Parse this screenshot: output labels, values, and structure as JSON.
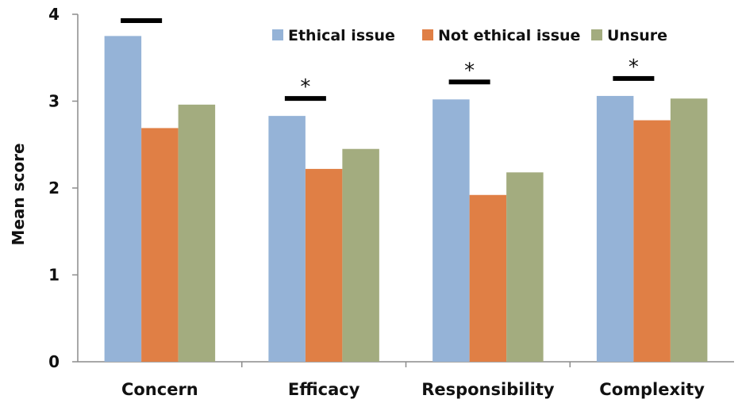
{
  "chart_data": {
    "type": "bar",
    "title": "",
    "xlabel": "",
    "ylabel": "Mean score",
    "ylim": [
      0,
      4
    ],
    "yticks": [
      0,
      1,
      2,
      3,
      4
    ],
    "grid": false,
    "legend_position": "top-right",
    "categories": [
      "Concern",
      "Efficacy",
      "Responsibility",
      "Complexity"
    ],
    "series": [
      {
        "name": "Ethical issue",
        "color": "#95b3d7",
        "values": [
          3.75,
          2.83,
          3.02,
          3.06
        ]
      },
      {
        "name": "Not ethical issue",
        "color": "#e07f45",
        "values": [
          2.69,
          2.22,
          1.92,
          2.78
        ]
      },
      {
        "name": "Unsure",
        "color": "#a3ac7f",
        "values": [
          2.96,
          2.45,
          2.18,
          3.03
        ]
      }
    ],
    "annotations": [
      {
        "category": "Concern",
        "between": [
          "Ethical issue",
          "Not ethical issue"
        ],
        "bar": true,
        "star": ""
      },
      {
        "category": "Efficacy",
        "between": [
          "Ethical issue",
          "Not ethical issue"
        ],
        "bar": true,
        "star": "*"
      },
      {
        "category": "Responsibility",
        "between": [
          "Ethical issue",
          "Not ethical issue"
        ],
        "bar": true,
        "star": "*"
      },
      {
        "category": "Complexity",
        "between": [
          "Ethical issue",
          "Not ethical issue"
        ],
        "bar": true,
        "star": "*"
      }
    ]
  }
}
